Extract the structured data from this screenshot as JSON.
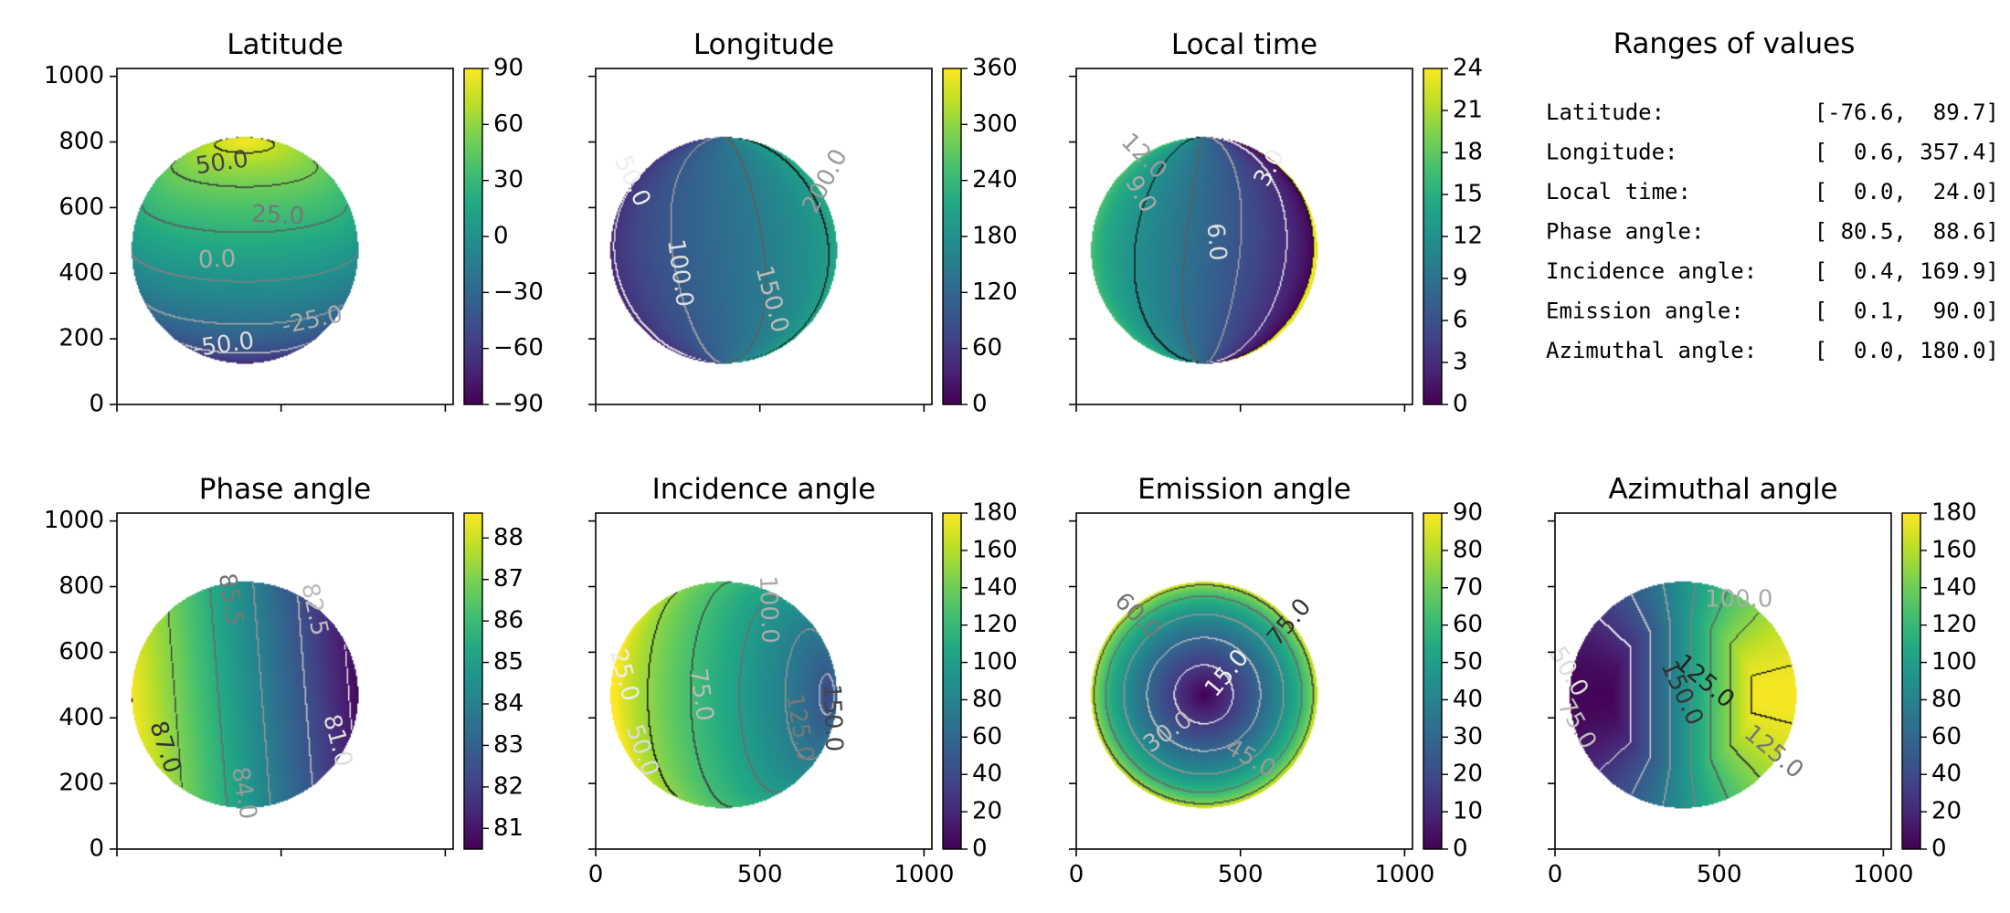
{
  "chart_data": [
    {
      "type": "heatmap",
      "title": "Latitude",
      "field": "latitude",
      "xlim": [
        0,
        1024
      ],
      "ylim": [
        0,
        1024
      ],
      "xticks": [
        0,
        500,
        1000
      ],
      "xticklabels": [
        "",
        "",
        ""
      ],
      "yticks": [
        0,
        200,
        400,
        600,
        800,
        1000
      ],
      "yticklabels": [
        "0",
        "200",
        "400",
        "600",
        "800",
        "1000"
      ],
      "colorbar": {
        "range": [
          -90,
          90
        ],
        "ticks": [
          -90,
          -60,
          -30,
          0,
          30,
          60,
          90
        ],
        "ticklabels": [
          "−90",
          "−60",
          "−30",
          "0",
          "30",
          "60",
          "90"
        ]
      },
      "contour_labels": [
        {
          "text": "50.0",
          "x": 320,
          "y": 735,
          "rot": 8,
          "color": "#444444"
        },
        {
          "text": "25.0",
          "x": 490,
          "y": 575,
          "rot": -3,
          "color": "#777777"
        },
        {
          "text": "0.0",
          "x": 305,
          "y": 440,
          "rot": 2,
          "color": "#aaaaaa"
        },
        {
          "text": "-25.0",
          "x": 595,
          "y": 255,
          "rot": 12,
          "color": "#aaaaaa"
        },
        {
          "text": "-50.0",
          "x": 325,
          "y": 180,
          "rot": 8,
          "color": "#dddddd"
        }
      ]
    },
    {
      "type": "heatmap",
      "title": "Longitude",
      "field": "longitude",
      "xlim": [
        0,
        1024
      ],
      "ylim": [
        0,
        1024
      ],
      "xticks": [
        0,
        500,
        1000
      ],
      "xticklabels": [
        "",
        "",
        ""
      ],
      "yticks": [
        0,
        200,
        400,
        600,
        800,
        1000
      ],
      "yticklabels": [
        "",
        "",
        "",
        "",
        "",
        ""
      ],
      "colorbar": {
        "range": [
          0,
          360
        ],
        "ticks": [
          0,
          60,
          120,
          180,
          240,
          300,
          360
        ],
        "ticklabels": [
          "0",
          "60",
          "120",
          "180",
          "240",
          "300",
          "360"
        ]
      },
      "contour_labels": [
        {
          "text": "50.0",
          "x": 110,
          "y": 680,
          "rot": -65,
          "color": "#eeeeee"
        },
        {
          "text": "100.0",
          "x": 255,
          "y": 400,
          "rot": -82,
          "color": "#dddddd"
        },
        {
          "text": "150.0",
          "x": 535,
          "y": 320,
          "rot": -75,
          "color": "#bbbbbb"
        },
        {
          "text": "200.0",
          "x": 700,
          "y": 680,
          "rot": 62,
          "color": "#999999"
        }
      ]
    },
    {
      "type": "heatmap",
      "title": "Local time",
      "field": "localtime",
      "xlim": [
        0,
        1024
      ],
      "ylim": [
        0,
        1024
      ],
      "xticks": [
        0,
        500,
        1000
      ],
      "xticklabels": [
        "",
        "",
        ""
      ],
      "yticks": [
        0,
        200,
        400,
        600,
        800,
        1000
      ],
      "yticklabels": [
        "",
        "",
        "",
        "",
        "",
        ""
      ],
      "colorbar": {
        "range": [
          0,
          24
        ],
        "ticks": [
          0,
          3,
          6,
          9,
          12,
          15,
          18,
          21,
          24
        ],
        "ticklabels": [
          "0",
          "3",
          "6",
          "9",
          "12",
          "15",
          "18",
          "21",
          "24"
        ]
      },
      "contour_labels": [
        {
          "text": "12.0",
          "x": 205,
          "y": 755,
          "rot": -45,
          "color": "#999999"
        },
        {
          "text": "9.0",
          "x": 195,
          "y": 640,
          "rot": -60,
          "color": "#aaaaaa"
        },
        {
          "text": "6.0",
          "x": 425,
          "y": 495,
          "rot": -85,
          "color": "#dddddd"
        },
        {
          "text": "3.0",
          "x": 590,
          "y": 720,
          "rot": 62,
          "color": "#eeeeee"
        }
      ]
    },
    {
      "type": "heatmap",
      "title": "Phase angle",
      "field": "phase",
      "xlim": [
        0,
        1024
      ],
      "ylim": [
        0,
        1024
      ],
      "xticks": [
        0,
        500,
        1000
      ],
      "xticklabels": [
        "",
        "",
        ""
      ],
      "yticks": [
        0,
        200,
        400,
        600,
        800,
        1000
      ],
      "yticklabels": [
        "0",
        "200",
        "400",
        "600",
        "800",
        "1000"
      ],
      "colorbar": {
        "range": [
          80.5,
          88.6
        ],
        "ticks": [
          81,
          82,
          83,
          84,
          85,
          86,
          87,
          88
        ],
        "ticklabels": [
          "81",
          "82",
          "83",
          "84",
          "85",
          "86",
          "87",
          "88"
        ]
      },
      "contour_labels": [
        {
          "text": "87.0",
          "x": 145,
          "y": 310,
          "rot": -72,
          "color": "#333333"
        },
        {
          "text": "85.5",
          "x": 345,
          "y": 760,
          "rot": -80,
          "color": "#777777"
        },
        {
          "text": "84.0",
          "x": 385,
          "y": 170,
          "rot": -80,
          "color": "#999999"
        },
        {
          "text": "82.5",
          "x": 600,
          "y": 730,
          "rot": -78,
          "color": "#bbbbbb"
        },
        {
          "text": "81.0",
          "x": 670,
          "y": 330,
          "rot": -75,
          "color": "#dddddd"
        }
      ]
    },
    {
      "type": "heatmap",
      "title": "Incidence angle",
      "field": "incidence",
      "xlim": [
        0,
        1024
      ],
      "ylim": [
        0,
        1024
      ],
      "xticks": [
        0,
        500,
        1000
      ],
      "xticklabels": [
        "0",
        "500",
        "1000"
      ],
      "yticks": [
        0,
        200,
        400,
        600,
        800,
        1000
      ],
      "yticklabels": [
        "",
        "",
        "",
        "",
        "",
        ""
      ],
      "colorbar": {
        "range": [
          0,
          180
        ],
        "ticks": [
          0,
          20,
          40,
          60,
          80,
          100,
          120,
          140,
          160,
          180
        ],
        "ticklabels": [
          "0",
          "20",
          "40",
          "60",
          "80",
          "100",
          "120",
          "140",
          "160",
          "180"
        ]
      },
      "contour_labels": [
        {
          "text": "25.0",
          "x": 85,
          "y": 530,
          "rot": -75,
          "color": "#eeeeee"
        },
        {
          "text": "50.0",
          "x": 140,
          "y": 300,
          "rot": -70,
          "color": "#dddddd"
        },
        {
          "text": "75.0",
          "x": 320,
          "y": 470,
          "rot": -82,
          "color": "#bbbbbb"
        },
        {
          "text": "100.0",
          "x": 525,
          "y": 730,
          "rot": -88,
          "color": "#aaaaaa"
        },
        {
          "text": "125.0",
          "x": 620,
          "y": 370,
          "rot": -80,
          "color": "#777777"
        },
        {
          "text": "150.0",
          "x": 720,
          "y": 400,
          "rot": -88,
          "color": "#444444"
        }
      ]
    },
    {
      "type": "heatmap",
      "title": "Emission angle",
      "field": "emission",
      "xlim": [
        0,
        1024
      ],
      "ylim": [
        0,
        1024
      ],
      "xticks": [
        0,
        500,
        1000
      ],
      "xticklabels": [
        "0",
        "500",
        "1000"
      ],
      "yticks": [
        0,
        200,
        400,
        600,
        800,
        1000
      ],
      "yticklabels": [
        "",
        "",
        "",
        "",
        "",
        ""
      ],
      "colorbar": {
        "range": [
          0,
          90
        ],
        "ticks": [
          0,
          10,
          20,
          30,
          40,
          50,
          60,
          70,
          80,
          90
        ],
        "ticklabels": [
          "0",
          "10",
          "20",
          "30",
          "40",
          "50",
          "60",
          "70",
          "80",
          "90"
        ]
      },
      "contour_labels": [
        {
          "text": "15.0",
          "x": 460,
          "y": 535,
          "rot": 50,
          "color": "#eeeeee"
        },
        {
          "text": "30.0",
          "x": 280,
          "y": 355,
          "rot": 35,
          "color": "#bbbbbb"
        },
        {
          "text": "45.0",
          "x": 530,
          "y": 275,
          "rot": -30,
          "color": "#999999"
        },
        {
          "text": "60.0",
          "x": 185,
          "y": 710,
          "rot": -45,
          "color": "#777777"
        },
        {
          "text": "75.0",
          "x": 650,
          "y": 690,
          "rot": 50,
          "color": "#333333"
        }
      ]
    },
    {
      "type": "heatmap",
      "title": "Azimuthal angle",
      "field": "azimuth",
      "xlim": [
        0,
        1024
      ],
      "ylim": [
        0,
        1024
      ],
      "xticks": [
        0,
        500,
        1000
      ],
      "xticklabels": [
        "0",
        "500",
        "1000"
      ],
      "yticks": [
        0,
        200,
        400,
        600,
        800,
        1000
      ],
      "yticklabels": [
        "",
        "",
        "",
        "",
        "",
        ""
      ],
      "colorbar": {
        "range": [
          0,
          180
        ],
        "ticks": [
          0,
          20,
          40,
          60,
          80,
          100,
          120,
          140,
          160,
          180
        ],
        "ticklabels": [
          "0",
          "20",
          "40",
          "60",
          "80",
          "100",
          "120",
          "140",
          "160",
          "180"
        ]
      },
      "contour_labels": [
        {
          "text": "100.0",
          "x": 560,
          "y": 760,
          "rot": 0,
          "color": "#aaaaaa"
        },
        {
          "text": "50.0",
          "x": 40,
          "y": 540,
          "rot": -60,
          "color": "#dddddd"
        },
        {
          "text": "75.0",
          "x": 65,
          "y": 380,
          "rot": -60,
          "color": "#bbbbbb"
        },
        {
          "text": "150.0",
          "x": 385,
          "y": 475,
          "rot": -65,
          "color": "#333333"
        },
        {
          "text": "125.0",
          "x": 455,
          "y": 510,
          "rot": -40,
          "color": "#222222"
        },
        {
          "text": "125.0",
          "x": 665,
          "y": 295,
          "rot": -40,
          "color": "#777777"
        }
      ]
    }
  ],
  "ranges": {
    "title": "Ranges of values",
    "rows": [
      {
        "label": "Latitude:",
        "value": "[-76.6,  89.7]"
      },
      {
        "label": "Longitude:",
        "value": "[  0.6, 357.4]"
      },
      {
        "label": "Local time:",
        "value": "[  0.0,  24.0]"
      },
      {
        "label": "Phase angle:",
        "value": "[ 80.5,  88.6]"
      },
      {
        "label": "Incidence angle:",
        "value": "[  0.4, 169.9]"
      },
      {
        "label": "Emission angle:",
        "value": "[  0.1,  90.0]"
      },
      {
        "label": "Azimuthal angle:",
        "value": "[  0.0, 180.0]"
      }
    ]
  },
  "colors": {
    "colormap": "viridis",
    "axis": "#000000"
  }
}
